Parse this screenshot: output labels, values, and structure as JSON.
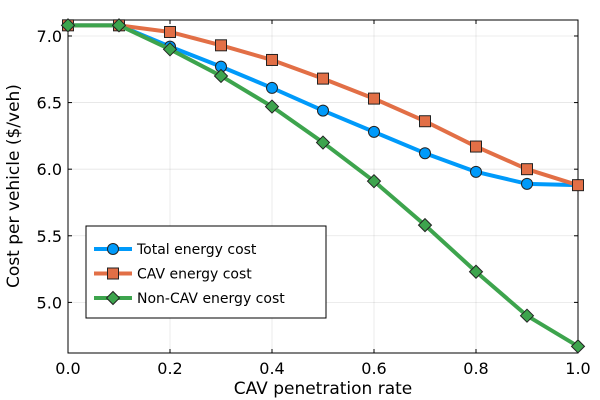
{
  "chart_data": {
    "type": "line",
    "title": "",
    "xlabel": "CAV penetration rate",
    "ylabel": "Cost per vehicle ($/veh)",
    "xlim": [
      0.0,
      1.0
    ],
    "ylim": [
      4.62,
      7.12
    ],
    "xticks": [
      0.0,
      0.2,
      0.4,
      0.6,
      0.8,
      1.0
    ],
    "xtick_labels": [
      "0.0",
      "0.2",
      "0.4",
      "0.6",
      "0.8",
      "1.0"
    ],
    "yticks": [
      5.0,
      5.5,
      6.0,
      6.5,
      7.0
    ],
    "ytick_labels": [
      "5.0",
      "5.5",
      "6.0",
      "6.5",
      "7.0"
    ],
    "grid": true,
    "legend_position": "bottom-left",
    "x": [
      0.0,
      0.1,
      0.2,
      0.3,
      0.4,
      0.5,
      0.6,
      0.7,
      0.8,
      0.9,
      1.0
    ],
    "series": [
      {
        "name": "Total energy cost",
        "color": "#009AFA",
        "marker": "circle",
        "values": [
          7.08,
          7.08,
          6.92,
          6.77,
          6.61,
          6.44,
          6.28,
          6.12,
          5.98,
          5.89,
          5.88
        ]
      },
      {
        "name": "CAV energy cost",
        "color": "#E26F46",
        "marker": "square",
        "values": [
          7.08,
          7.08,
          7.03,
          6.93,
          6.82,
          6.68,
          6.53,
          6.36,
          6.17,
          6.0,
          5.88
        ]
      },
      {
        "name": "Non-CAV energy cost",
        "color": "#3DA44D",
        "marker": "diamond",
        "values": [
          7.08,
          7.08,
          6.9,
          6.7,
          6.47,
          6.2,
          5.91,
          5.58,
          5.23,
          4.9,
          4.67
        ]
      }
    ]
  }
}
